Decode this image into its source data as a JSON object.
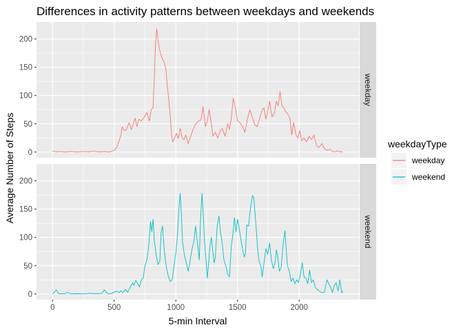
{
  "chart_data": {
    "type": "line",
    "title": "Differences in activity patterns between weekdays and weekends",
    "xlabel": "5-min Interval",
    "ylabel": "Average Number of Steps",
    "xlim": [
      -130,
      2485
    ],
    "ylim": [
      -10,
      230
    ],
    "x_ticks": [
      0,
      500,
      1000,
      1500,
      2000
    ],
    "y_ticks": [
      0,
      50,
      100,
      150,
      200
    ],
    "grid": true,
    "legend": {
      "title": "weekdayType",
      "position": "right",
      "entries": [
        "weekday",
        "weekend"
      ]
    },
    "panels": [
      {
        "strip": "weekday",
        "series": {
          "name": "weekday",
          "color": "#F8766D",
          "points": [
            [
              0,
              2
            ],
            [
              30,
              0.5
            ],
            [
              60,
              1
            ],
            [
              100,
              0
            ],
            [
              150,
              1
            ],
            [
              200,
              0
            ],
            [
              250,
              1
            ],
            [
              300,
              0.5
            ],
            [
              330,
              1.5
            ],
            [
              380,
              0.3
            ],
            [
              420,
              1
            ],
            [
              460,
              0
            ],
            [
              500,
              3
            ],
            [
              520,
              8
            ],
            [
              540,
              20
            ],
            [
              555,
              30
            ],
            [
              565,
              45
            ],
            [
              580,
              38
            ],
            [
              600,
              40
            ],
            [
              620,
              52
            ],
            [
              640,
              40
            ],
            [
              655,
              50
            ],
            [
              670,
              60
            ],
            [
              685,
              45
            ],
            [
              700,
              58
            ],
            [
              720,
              55
            ],
            [
              745,
              62
            ],
            [
              765,
              70
            ],
            [
              785,
              55
            ],
            [
              800,
              75
            ],
            [
              815,
              78
            ],
            [
              825,
              130
            ],
            [
              835,
              190
            ],
            [
              845,
              218
            ],
            [
              860,
              190
            ],
            [
              875,
              175
            ],
            [
              890,
              165
            ],
            [
              905,
              160
            ],
            [
              920,
              145
            ],
            [
              930,
              118
            ],
            [
              945,
              88
            ],
            [
              955,
              62
            ],
            [
              965,
              30
            ],
            [
              975,
              18
            ],
            [
              990,
              25
            ],
            [
              1005,
              33
            ],
            [
              1020,
              24
            ],
            [
              1035,
              42
            ],
            [
              1050,
              25
            ],
            [
              1065,
              22
            ],
            [
              1080,
              30
            ],
            [
              1100,
              15
            ],
            [
              1120,
              28
            ],
            [
              1140,
              40
            ],
            [
              1160,
              50
            ],
            [
              1185,
              55
            ],
            [
              1205,
              57
            ],
            [
              1220,
              80
            ],
            [
              1240,
              45
            ],
            [
              1255,
              55
            ],
            [
              1270,
              75
            ],
            [
              1290,
              48
            ],
            [
              1300,
              28
            ],
            [
              1320,
              35
            ],
            [
              1340,
              25
            ],
            [
              1355,
              35
            ],
            [
              1375,
              42
            ],
            [
              1400,
              28
            ],
            [
              1420,
              50
            ],
            [
              1435,
              40
            ],
            [
              1450,
              60
            ],
            [
              1465,
              95
            ],
            [
              1480,
              82
            ],
            [
              1500,
              55
            ],
            [
              1520,
              52
            ],
            [
              1540,
              45
            ],
            [
              1560,
              35
            ],
            [
              1580,
              58
            ],
            [
              1600,
              75
            ],
            [
              1620,
              62
            ],
            [
              1640,
              48
            ],
            [
              1660,
              45
            ],
            [
              1680,
              60
            ],
            [
              1700,
              75
            ],
            [
              1715,
              78
            ],
            [
              1730,
              58
            ],
            [
              1745,
              72
            ],
            [
              1760,
              90
            ],
            [
              1780,
              62
            ],
            [
              1800,
              70
            ],
            [
              1815,
              90
            ],
            [
              1830,
              82
            ],
            [
              1845,
              107
            ],
            [
              1860,
              82
            ],
            [
              1875,
              78
            ],
            [
              1890,
              72
            ],
            [
              1905,
              68
            ],
            [
              1925,
              60
            ],
            [
              1940,
              30
            ],
            [
              1955,
              52
            ],
            [
              1975,
              30
            ],
            [
              1990,
              25
            ],
            [
              2005,
              38
            ],
            [
              2020,
              20
            ],
            [
              2040,
              25
            ],
            [
              2060,
              18
            ],
            [
              2080,
              28
            ],
            [
              2100,
              22
            ],
            [
              2120,
              30
            ],
            [
              2140,
              12
            ],
            [
              2160,
              8
            ],
            [
              2185,
              15
            ],
            [
              2205,
              6
            ],
            [
              2225,
              3
            ],
            [
              2250,
              5
            ],
            [
              2270,
              1
            ],
            [
              2290,
              0.5
            ],
            [
              2310,
              2
            ],
            [
              2330,
              0.5
            ],
            [
              2355,
              0.3
            ]
          ]
        }
      },
      {
        "strip": "weekend",
        "series": {
          "name": "weekend",
          "color": "#00BFC4",
          "points": [
            [
              0,
              0
            ],
            [
              30,
              7
            ],
            [
              50,
              0.5
            ],
            [
              100,
              0
            ],
            [
              120,
              3
            ],
            [
              150,
              0
            ],
            [
              200,
              0.5
            ],
            [
              250,
              0
            ],
            [
              300,
              1
            ],
            [
              350,
              0.5
            ],
            [
              400,
              1
            ],
            [
              420,
              7
            ],
            [
              440,
              2
            ],
            [
              460,
              0
            ],
            [
              480,
              1
            ],
            [
              500,
              3
            ],
            [
              520,
              5
            ],
            [
              540,
              2
            ],
            [
              555,
              6
            ],
            [
              570,
              2
            ],
            [
              590,
              8
            ],
            [
              610,
              3
            ],
            [
              630,
              12
            ],
            [
              650,
              20
            ],
            [
              660,
              15
            ],
            [
              675,
              24
            ],
            [
              690,
              18
            ],
            [
              705,
              12
            ],
            [
              720,
              25
            ],
            [
              735,
              28
            ],
            [
              750,
              50
            ],
            [
              765,
              60
            ],
            [
              780,
              85
            ],
            [
              795,
              128
            ],
            [
              805,
              110
            ],
            [
              815,
              132
            ],
            [
              825,
              95
            ],
            [
              840,
              70
            ],
            [
              855,
              52
            ],
            [
              870,
              58
            ],
            [
              880,
              108
            ],
            [
              892,
              120
            ],
            [
              905,
              80
            ],
            [
              915,
              60
            ],
            [
              925,
              45
            ],
            [
              940,
              30
            ],
            [
              955,
              22
            ],
            [
              970,
              25
            ],
            [
              985,
              50
            ],
            [
              1000,
              72
            ],
            [
              1015,
              110
            ],
            [
              1025,
              150
            ],
            [
              1035,
              178
            ],
            [
              1045,
              140
            ],
            [
              1055,
              90
            ],
            [
              1070,
              68
            ],
            [
              1085,
              55
            ],
            [
              1100,
              40
            ],
            [
              1115,
              58
            ],
            [
              1130,
              78
            ],
            [
              1145,
              92
            ],
            [
              1160,
              120
            ],
            [
              1175,
              90
            ],
            [
              1190,
              60
            ],
            [
              1200,
              130
            ],
            [
              1212,
              178
            ],
            [
              1222,
              140
            ],
            [
              1232,
              95
            ],
            [
              1245,
              60
            ],
            [
              1255,
              28
            ],
            [
              1265,
              52
            ],
            [
              1275,
              82
            ],
            [
              1288,
              100
            ],
            [
              1300,
              75
            ],
            [
              1310,
              55
            ],
            [
              1320,
              65
            ],
            [
              1335,
              120
            ],
            [
              1350,
              138
            ],
            [
              1362,
              108
            ],
            [
              1375,
              92
            ],
            [
              1390,
              60
            ],
            [
              1405,
              50
            ],
            [
              1420,
              35
            ],
            [
              1435,
              30
            ],
            [
              1450,
              85
            ],
            [
              1465,
              110
            ],
            [
              1475,
              135
            ],
            [
              1488,
              110
            ],
            [
              1500,
              132
            ],
            [
              1512,
              118
            ],
            [
              1525,
              100
            ],
            [
              1540,
              80
            ],
            [
              1555,
              65
            ],
            [
              1565,
              72
            ],
            [
              1575,
              122
            ],
            [
              1590,
              120
            ],
            [
              1600,
              142
            ],
            [
              1612,
              162
            ],
            [
              1622,
              174
            ],
            [
              1632,
              170
            ],
            [
              1645,
              135
            ],
            [
              1655,
              105
            ],
            [
              1665,
              75
            ],
            [
              1675,
              58
            ],
            [
              1690,
              48
            ],
            [
              1700,
              30
            ],
            [
              1715,
              55
            ],
            [
              1730,
              80
            ],
            [
              1745,
              70
            ],
            [
              1760,
              90
            ],
            [
              1775,
              60
            ],
            [
              1790,
              45
            ],
            [
              1805,
              55
            ],
            [
              1815,
              78
            ],
            [
              1825,
              68
            ],
            [
              1840,
              40
            ],
            [
              1855,
              48
            ],
            [
              1870,
              88
            ],
            [
              1885,
              112
            ],
            [
              1895,
              78
            ],
            [
              1905,
              50
            ],
            [
              1920,
              40
            ],
            [
              1935,
              22
            ],
            [
              1950,
              28
            ],
            [
              1965,
              18
            ],
            [
              1980,
              25
            ],
            [
              1995,
              20
            ],
            [
              2010,
              35
            ],
            [
              2025,
              55
            ],
            [
              2040,
              30
            ],
            [
              2055,
              28
            ],
            [
              2070,
              18
            ],
            [
              2085,
              42
            ],
            [
              2100,
              20
            ],
            [
              2115,
              25
            ],
            [
              2130,
              12
            ],
            [
              2145,
              8
            ],
            [
              2165,
              5
            ],
            [
              2185,
              2
            ],
            [
              2205,
              3
            ],
            [
              2225,
              25
            ],
            [
              2240,
              18
            ],
            [
              2255,
              12
            ],
            [
              2270,
              2
            ],
            [
              2285,
              15
            ],
            [
              2300,
              20
            ],
            [
              2315,
              5
            ],
            [
              2330,
              25
            ],
            [
              2345,
              2
            ],
            [
              2355,
              5
            ]
          ]
        }
      }
    ]
  }
}
